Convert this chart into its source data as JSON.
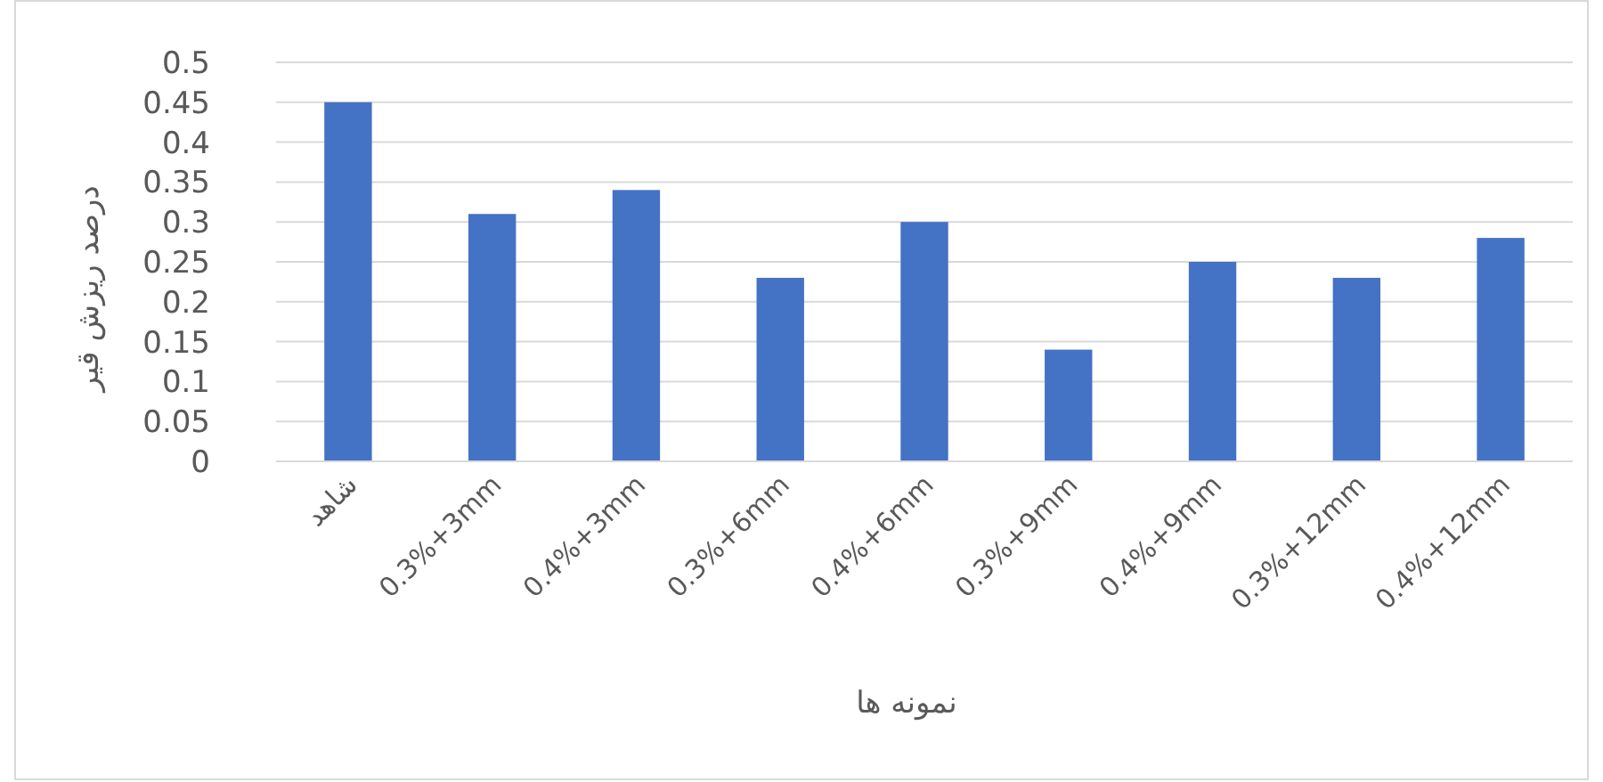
{
  "chart_data": {
    "type": "bar",
    "xlabel": "نمونه ها",
    "ylabel": "درصد ریزش قیر",
    "categories": [
      "شاهد",
      "0.3%+3mm",
      "0.4%+3mm",
      "0.3%+6mm",
      "0.4%+6mm",
      "0.3%+9mm",
      "0.4%+9mm",
      "0.3%+12mm",
      "0.4%+12mm"
    ],
    "values": [
      0.45,
      0.31,
      0.34,
      0.23,
      0.3,
      0.14,
      0.25,
      0.23,
      0.28
    ],
    "color": "#4472c4",
    "ylim": [
      0,
      0.5
    ],
    "yticks": [
      0,
      0.05,
      0.1,
      0.15,
      0.2,
      0.25,
      0.3,
      0.35,
      0.4,
      0.45,
      0.5
    ],
    "grid": "y"
  }
}
